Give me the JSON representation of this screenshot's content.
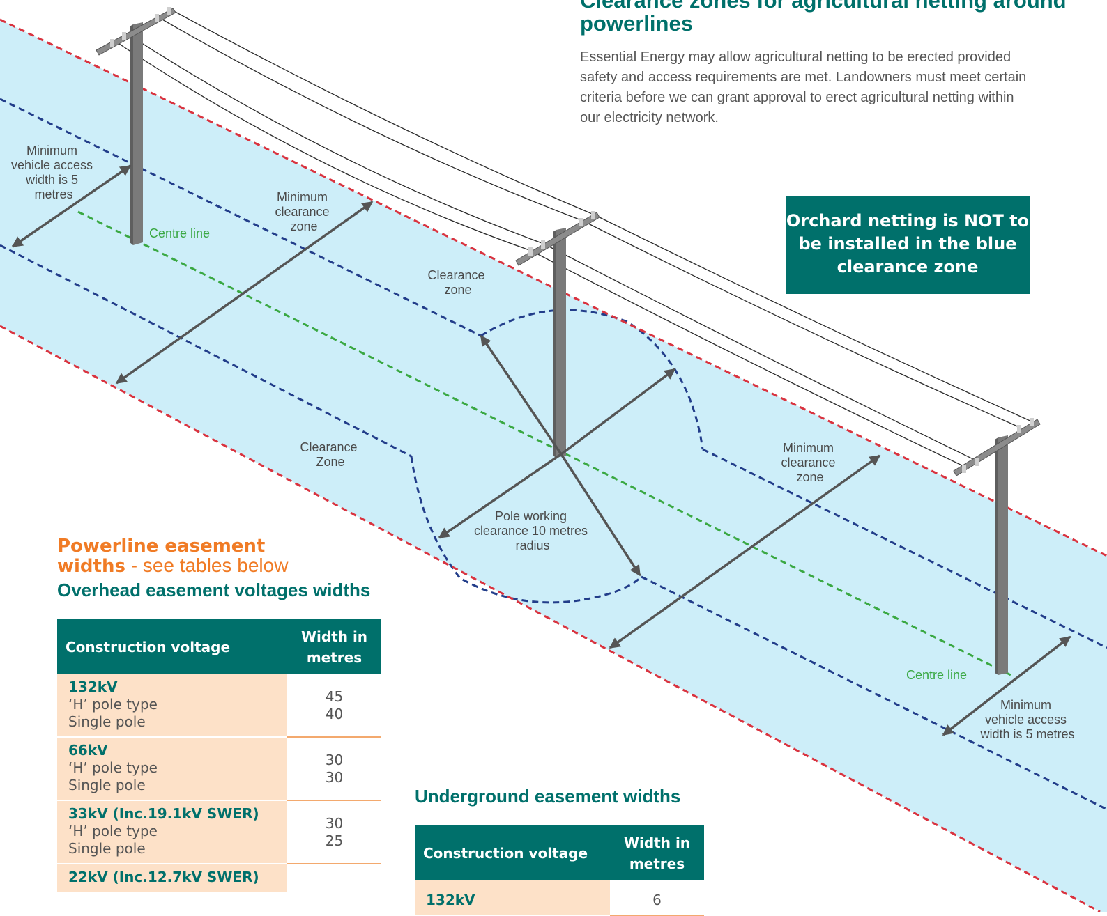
{
  "title": "Clearance zones for agricultural netting around powerlines",
  "intro": "Essential Energy may allow agricultural netting to be erected provided safety and access requirements are met. Landowners must meet certain criteria before we can grant approval to erect agricultural netting within our electricity network.",
  "callout": "Orchard netting is NOT to be installed in the blue clearance zone",
  "diagram_labels": {
    "vehicle_access_left": [
      "Minimum",
      "vehicle access",
      "width is 5",
      "metres"
    ],
    "vehicle_access_right": [
      "Minimum",
      "vehicle access",
      "width is 5 metres"
    ],
    "min_clearance_left": [
      "Minimum",
      "clearance",
      "zone"
    ],
    "min_clearance_right": [
      "Minimum",
      "clearance",
      "zone"
    ],
    "clearance_zone_top": [
      "Clearance",
      "zone"
    ],
    "clearance_zone_bottom": [
      "Clearance",
      "Zone"
    ],
    "pole_working": [
      "Pole working",
      "clearance 10 metres",
      "radius"
    ],
    "centre_line": "Centre line"
  },
  "easement_heading": {
    "bold": "Powerline easement widths",
    "rest": " - see tables below"
  },
  "overhead_table": {
    "title": "Overhead easement voltages widths",
    "col_voltage": "Construction voltage",
    "col_width": "Width in metres",
    "rows": [
      {
        "voltage": "132kV",
        "types": [
          "‘H’ pole type",
          "Single pole"
        ],
        "widths": [
          "45",
          "40"
        ]
      },
      {
        "voltage": "66kV",
        "types": [
          "‘H’ pole type",
          "Single pole"
        ],
        "widths": [
          "30",
          "30"
        ]
      },
      {
        "voltage": "33kV (Inc.19.1kV SWER)",
        "types": [
          "‘H’ pole type",
          "Single pole"
        ],
        "widths": [
          "30",
          "25"
        ]
      },
      {
        "voltage": "22kV (Inc.12.7kV SWER)",
        "types": [],
        "widths": []
      }
    ]
  },
  "underground_table": {
    "title": "Underground easement widths",
    "col_voltage": "Construction voltage",
    "col_width": "Width in metres",
    "rows": [
      {
        "voltage": "132kV",
        "width": "6"
      }
    ]
  },
  "colors": {
    "teal": "#00706b",
    "orange": "#f07b25",
    "zone_fill": "#cdeef9",
    "red_boundary": "#d9333f",
    "blue_boundary": "#223d8a",
    "centre_line": "#3aa843",
    "table_row": "#fde1c8"
  }
}
